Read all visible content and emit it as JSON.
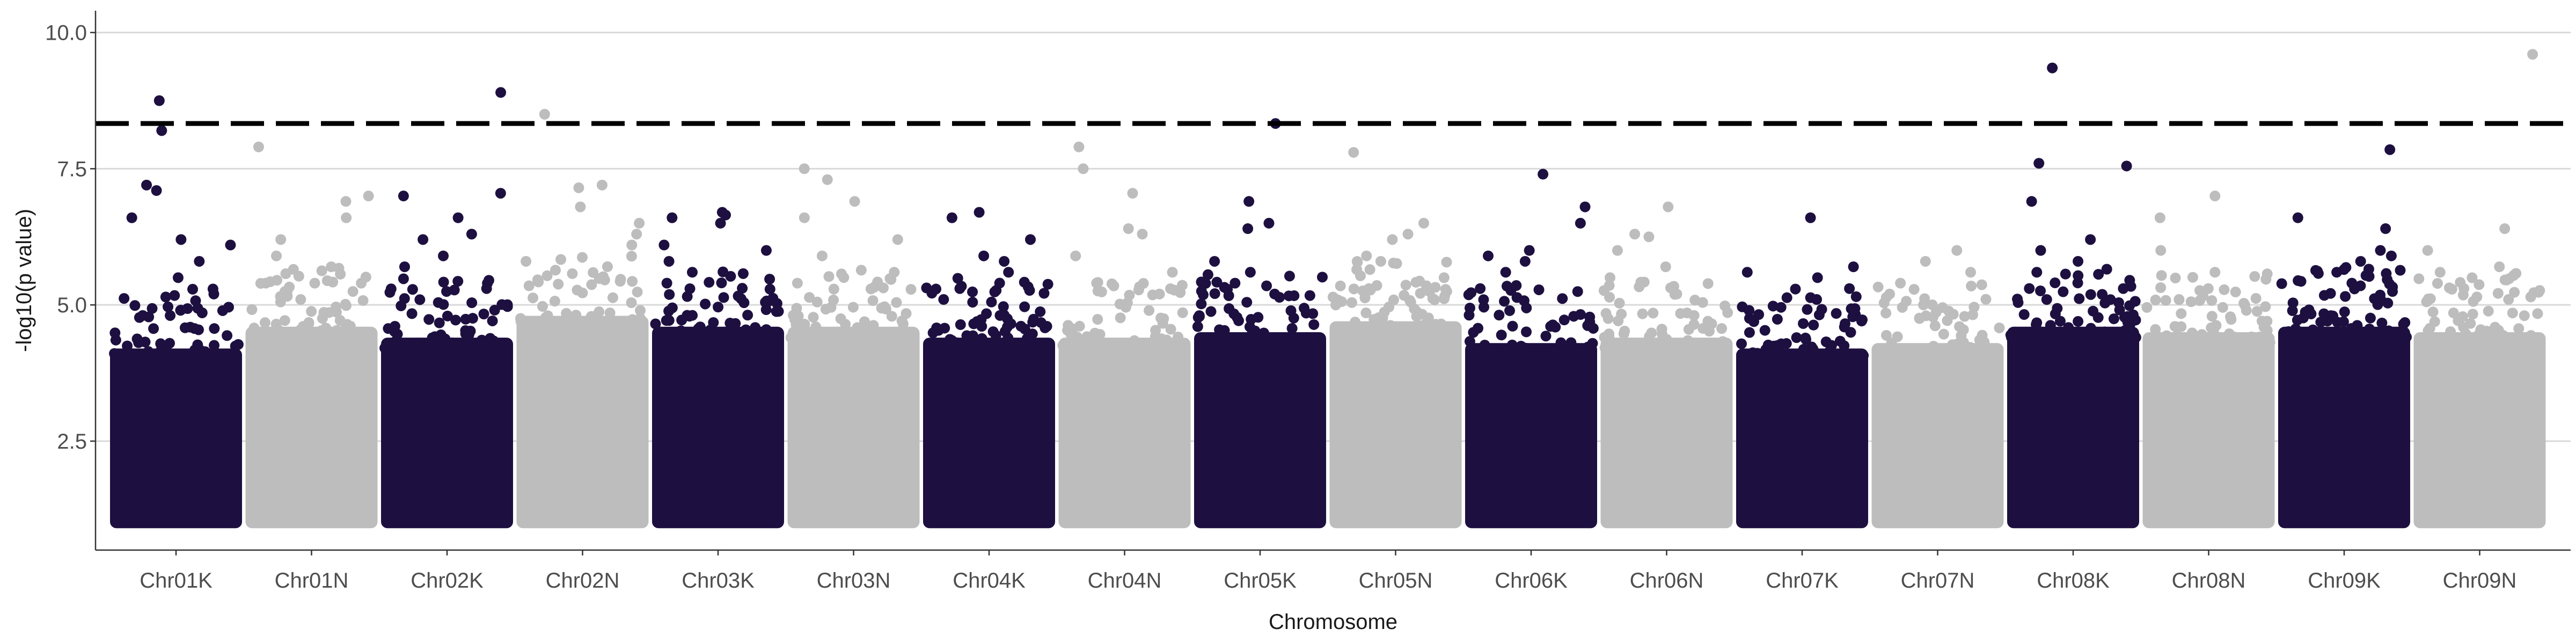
{
  "chart_data": {
    "type": "scatter",
    "title": "",
    "xlabel": "Chromosome",
    "ylabel": "-log10(p value)",
    "ylim": [
      0.5,
      10.4
    ],
    "y_ticks": [
      "2.5",
      "5.0",
      "7.5",
      "10.0"
    ],
    "y_tick_values": [
      2.5,
      5.0,
      7.5,
      10.0
    ],
    "grid": "horizontal major lines only",
    "legend": "none",
    "threshold": {
      "value": 8.33,
      "style": "dashed",
      "color": "#000000"
    },
    "colors": {
      "dark": "#1d1040",
      "light": "#bdbdbd"
    },
    "min_value": 1.0,
    "categories": [
      "Chr01K",
      "Chr01N",
      "Chr02K",
      "Chr02N",
      "Chr03K",
      "Chr03N",
      "Chr04K",
      "Chr04N",
      "Chr05K",
      "Chr05N",
      "Chr06K",
      "Chr06N",
      "Chr07K",
      "Chr07N",
      "Chr08K",
      "Chr08N",
      "Chr09K",
      "Chr09N"
    ],
    "series": [
      {
        "category": "Chr01K",
        "color": "dark",
        "dense_max": 4.2,
        "top_values": [
          8.75,
          8.2,
          7.2,
          7.1,
          6.6,
          6.2,
          6.1,
          5.8,
          5.5,
          5.2
        ]
      },
      {
        "category": "Chr01N",
        "color": "light",
        "dense_max": 4.6,
        "top_values": [
          7.9,
          7.0,
          6.9,
          6.6,
          6.2,
          5.9,
          5.7,
          5.4,
          5.1
        ]
      },
      {
        "category": "Chr02K",
        "color": "dark",
        "dense_max": 4.4,
        "top_values": [
          8.9,
          7.05,
          7.0,
          6.6,
          6.3,
          6.2,
          5.9,
          5.7,
          5.3
        ]
      },
      {
        "category": "Chr02N",
        "color": "light",
        "dense_max": 4.8,
        "top_values": [
          8.5,
          7.2,
          7.15,
          6.8,
          6.5,
          6.3,
          6.1,
          5.8
        ]
      },
      {
        "category": "Chr03K",
        "color": "dark",
        "dense_max": 4.6,
        "top_values": [
          6.7,
          6.65,
          6.6,
          6.5,
          6.1,
          6.0,
          5.8,
          5.6,
          5.4
        ]
      },
      {
        "category": "Chr03N",
        "color": "light",
        "dense_max": 4.6,
        "top_values": [
          7.5,
          7.3,
          6.9,
          6.6,
          6.2,
          5.9,
          5.6,
          5.4
        ]
      },
      {
        "category": "Chr04K",
        "color": "dark",
        "dense_max": 4.4,
        "top_values": [
          6.7,
          6.6,
          6.2,
          5.9,
          5.8,
          5.6,
          5.3,
          5.1
        ]
      },
      {
        "category": "Chr04N",
        "color": "light",
        "dense_max": 4.4,
        "top_values": [
          7.9,
          7.5,
          7.05,
          6.4,
          6.3,
          5.9,
          5.6,
          5.2
        ]
      },
      {
        "category": "Chr05K",
        "color": "dark",
        "dense_max": 4.5,
        "top_values": [
          8.33,
          6.9,
          6.5,
          6.4,
          5.8,
          5.6,
          5.4,
          5.2
        ]
      },
      {
        "category": "Chr05N",
        "color": "light",
        "dense_max": 4.7,
        "top_values": [
          7.8,
          6.5,
          6.3,
          6.2,
          5.9,
          5.8,
          5.5,
          5.3
        ]
      },
      {
        "category": "Chr06K",
        "color": "dark",
        "dense_max": 4.3,
        "top_values": [
          7.4,
          6.8,
          6.5,
          6.0,
          5.9,
          5.8,
          5.6,
          5.3
        ]
      },
      {
        "category": "Chr06N",
        "color": "light",
        "dense_max": 4.4,
        "top_values": [
          6.8,
          6.3,
          6.25,
          6.0,
          5.7,
          5.5,
          5.2
        ]
      },
      {
        "category": "Chr07K",
        "color": "dark",
        "dense_max": 4.2,
        "top_values": [
          6.6,
          5.7,
          5.6,
          5.5,
          5.3,
          5.1,
          4.9
        ]
      },
      {
        "category": "Chr07N",
        "color": "light",
        "dense_max": 4.3,
        "top_values": [
          6.0,
          5.8,
          5.6,
          5.4,
          5.2,
          5.0
        ]
      },
      {
        "category": "Chr08K",
        "color": "dark",
        "dense_max": 4.6,
        "top_values": [
          9.35,
          7.6,
          7.55,
          6.9,
          6.2,
          6.0,
          5.8,
          5.6,
          5.3
        ]
      },
      {
        "category": "Chr08N",
        "color": "light",
        "dense_max": 4.5,
        "top_values": [
          7.0,
          6.6,
          6.0,
          5.6,
          5.3,
          5.1,
          4.9
        ]
      },
      {
        "category": "Chr09K",
        "color": "dark",
        "dense_max": 4.6,
        "top_values": [
          7.85,
          6.6,
          6.4,
          6.0,
          5.9,
          5.8,
          5.6,
          5.4
        ]
      },
      {
        "category": "Chr09N",
        "color": "light",
        "dense_max": 4.5,
        "top_values": [
          9.6,
          6.4,
          6.0,
          5.7,
          5.6,
          5.3,
          5.1
        ]
      }
    ]
  }
}
